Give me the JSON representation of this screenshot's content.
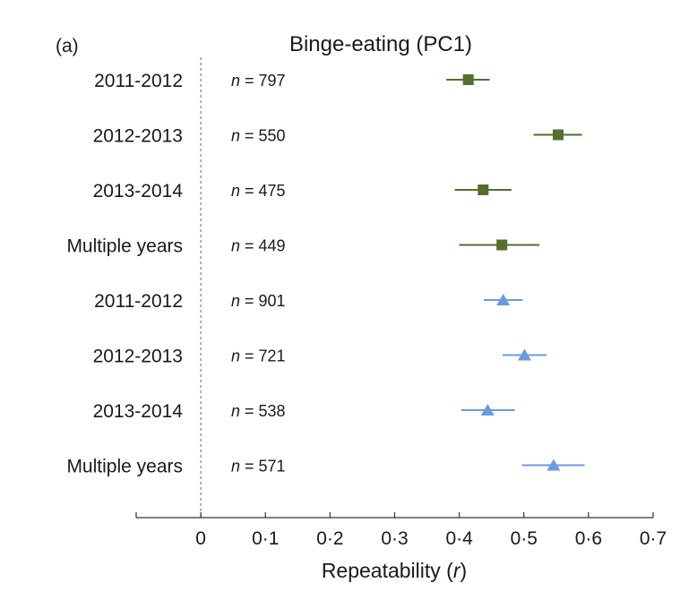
{
  "chart_data": {
    "type": "scatter",
    "panel_label": "(a)",
    "title": "Binge-eating (PC1)",
    "xlabel": "Repeatability",
    "xlabel_symbol": "r",
    "xlim": [
      -0.1,
      0.7
    ],
    "xticks": [
      0,
      0.1,
      0.2,
      0.3,
      0.4,
      0.5,
      0.6,
      0.7
    ],
    "xtick_labels": [
      "0",
      "0·1",
      "0·2",
      "0·3",
      "0·4",
      "0·5",
      "0·6",
      "0·7"
    ],
    "n_prefix": "n",
    "reference_line_x": 0,
    "rows": [
      {
        "label": "2011-2012",
        "n": "797",
        "r": 0.414,
        "ci": [
          0.38,
          0.447
        ],
        "marker": "square",
        "color": "#536e2f"
      },
      {
        "label": "2012-2013",
        "n": "550",
        "r": 0.553,
        "ci": [
          0.515,
          0.59
        ],
        "marker": "square",
        "color": "#536e2f"
      },
      {
        "label": "2013-2014",
        "n": "475",
        "r": 0.437,
        "ci": [
          0.393,
          0.481
        ],
        "marker": "square",
        "color": "#536e2f"
      },
      {
        "label": "Multiple years",
        "n": "449",
        "r": 0.466,
        "ci": [
          0.4,
          0.524
        ],
        "marker": "square",
        "color": "#536e2f"
      },
      {
        "label": "2011-2012",
        "n": "901",
        "r": 0.468,
        "ci": [
          0.438,
          0.498
        ],
        "marker": "triangle",
        "color": "#6b9ae0"
      },
      {
        "label": "2012-2013",
        "n": "721",
        "r": 0.501,
        "ci": [
          0.467,
          0.535
        ],
        "marker": "triangle",
        "color": "#6b9ae0"
      },
      {
        "label": "2013-2014",
        "n": "538",
        "r": 0.444,
        "ci": [
          0.403,
          0.486
        ],
        "marker": "triangle",
        "color": "#6b9ae0"
      },
      {
        "label": "Multiple years",
        "n": "571",
        "r": 0.546,
        "ci": [
          0.497,
          0.594
        ],
        "marker": "triangle",
        "color": "#6b9ae0"
      }
    ]
  }
}
